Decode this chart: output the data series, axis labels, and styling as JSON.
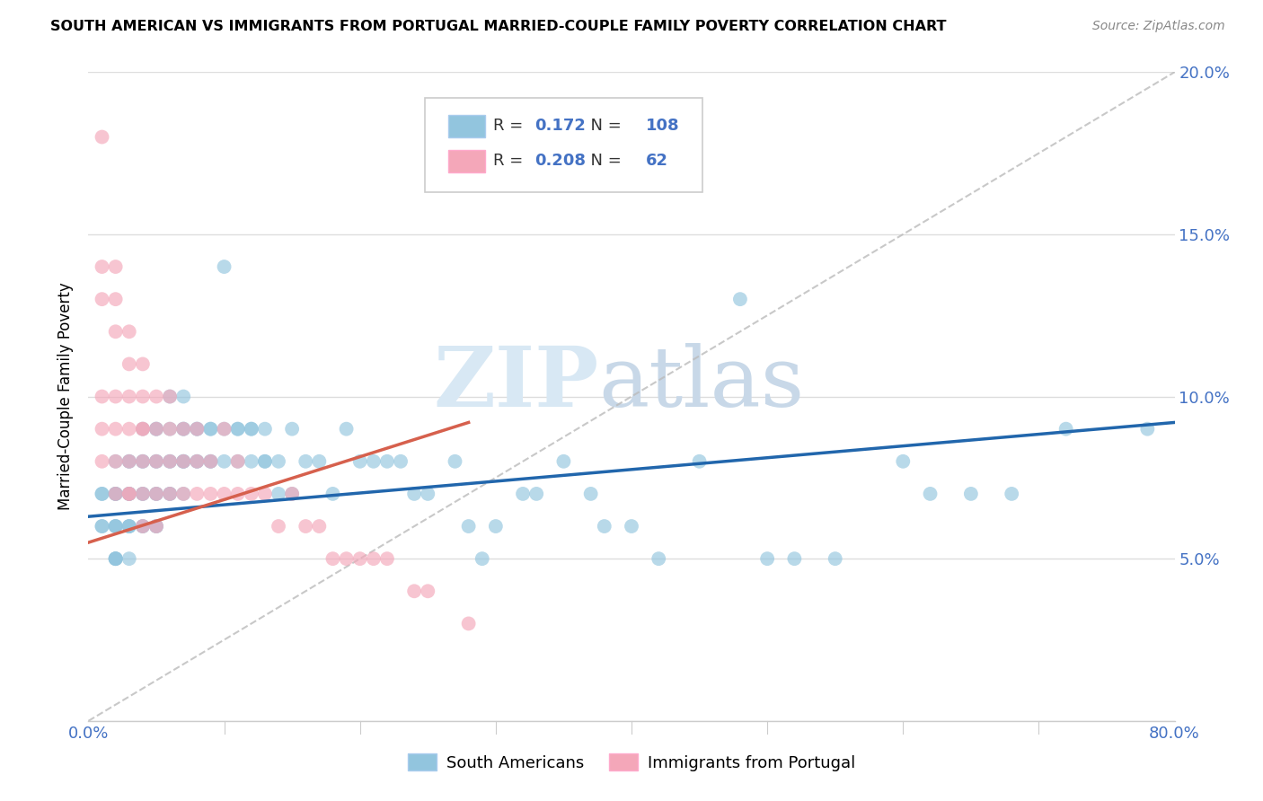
{
  "title": "SOUTH AMERICAN VS IMMIGRANTS FROM PORTUGAL MARRIED-COUPLE FAMILY POVERTY CORRELATION CHART",
  "source": "Source: ZipAtlas.com",
  "ylabel": "Married-Couple Family Poverty",
  "xlim": [
    0.0,
    0.8
  ],
  "ylim": [
    0.0,
    0.2
  ],
  "xticks": [
    0.0,
    0.1,
    0.2,
    0.3,
    0.4,
    0.5,
    0.6,
    0.7,
    0.8
  ],
  "yticks": [
    0.0,
    0.05,
    0.1,
    0.15,
    0.2
  ],
  "blue_R": 0.172,
  "blue_N": 108,
  "pink_R": 0.208,
  "pink_N": 62,
  "blue_color": "#92C5DE",
  "pink_color": "#F4A7B9",
  "blue_line_color": "#2166AC",
  "pink_line_color": "#D6604D",
  "watermark_zip": "ZIP",
  "watermark_atlas": "atlas",
  "legend_label_blue": "South Americans",
  "legend_label_pink": "Immigrants from Portugal",
  "blue_scatter_x": [
    0.01,
    0.01,
    0.01,
    0.01,
    0.02,
    0.02,
    0.02,
    0.02,
    0.02,
    0.02,
    0.02,
    0.02,
    0.02,
    0.02,
    0.02,
    0.03,
    0.03,
    0.03,
    0.03,
    0.03,
    0.03,
    0.03,
    0.03,
    0.03,
    0.04,
    0.04,
    0.04,
    0.04,
    0.04,
    0.04,
    0.04,
    0.05,
    0.05,
    0.05,
    0.05,
    0.05,
    0.05,
    0.05,
    0.05,
    0.06,
    0.06,
    0.06,
    0.06,
    0.06,
    0.06,
    0.07,
    0.07,
    0.07,
    0.07,
    0.07,
    0.07,
    0.07,
    0.08,
    0.08,
    0.08,
    0.08,
    0.09,
    0.09,
    0.09,
    0.09,
    0.1,
    0.1,
    0.1,
    0.11,
    0.11,
    0.11,
    0.12,
    0.12,
    0.12,
    0.13,
    0.13,
    0.13,
    0.14,
    0.14,
    0.15,
    0.15,
    0.16,
    0.17,
    0.18,
    0.19,
    0.2,
    0.21,
    0.22,
    0.23,
    0.24,
    0.25,
    0.27,
    0.28,
    0.29,
    0.3,
    0.32,
    0.33,
    0.35,
    0.37,
    0.38,
    0.4,
    0.42,
    0.45,
    0.48,
    0.5,
    0.52,
    0.55,
    0.6,
    0.62,
    0.65,
    0.68,
    0.72,
    0.78
  ],
  "blue_scatter_y": [
    0.07,
    0.07,
    0.06,
    0.06,
    0.08,
    0.07,
    0.07,
    0.07,
    0.06,
    0.06,
    0.06,
    0.05,
    0.05,
    0.05,
    0.05,
    0.08,
    0.08,
    0.07,
    0.07,
    0.07,
    0.06,
    0.06,
    0.06,
    0.05,
    0.09,
    0.08,
    0.08,
    0.07,
    0.07,
    0.06,
    0.06,
    0.09,
    0.09,
    0.08,
    0.08,
    0.07,
    0.07,
    0.06,
    0.06,
    0.1,
    0.09,
    0.08,
    0.08,
    0.07,
    0.07,
    0.1,
    0.09,
    0.09,
    0.08,
    0.08,
    0.08,
    0.07,
    0.09,
    0.09,
    0.08,
    0.08,
    0.09,
    0.09,
    0.08,
    0.08,
    0.14,
    0.09,
    0.08,
    0.09,
    0.09,
    0.08,
    0.09,
    0.09,
    0.08,
    0.09,
    0.08,
    0.08,
    0.08,
    0.07,
    0.09,
    0.07,
    0.08,
    0.08,
    0.07,
    0.09,
    0.08,
    0.08,
    0.08,
    0.08,
    0.07,
    0.07,
    0.08,
    0.06,
    0.05,
    0.06,
    0.07,
    0.07,
    0.08,
    0.07,
    0.06,
    0.06,
    0.05,
    0.08,
    0.13,
    0.05,
    0.05,
    0.05,
    0.08,
    0.07,
    0.07,
    0.07,
    0.09,
    0.09
  ],
  "pink_scatter_x": [
    0.01,
    0.01,
    0.01,
    0.01,
    0.01,
    0.01,
    0.02,
    0.02,
    0.02,
    0.02,
    0.02,
    0.02,
    0.02,
    0.03,
    0.03,
    0.03,
    0.03,
    0.03,
    0.03,
    0.03,
    0.04,
    0.04,
    0.04,
    0.04,
    0.04,
    0.04,
    0.04,
    0.05,
    0.05,
    0.05,
    0.05,
    0.05,
    0.06,
    0.06,
    0.06,
    0.06,
    0.07,
    0.07,
    0.07,
    0.08,
    0.08,
    0.08,
    0.09,
    0.09,
    0.1,
    0.1,
    0.11,
    0.11,
    0.12,
    0.13,
    0.14,
    0.15,
    0.16,
    0.17,
    0.18,
    0.19,
    0.2,
    0.21,
    0.22,
    0.24,
    0.25,
    0.28
  ],
  "pink_scatter_y": [
    0.18,
    0.14,
    0.13,
    0.1,
    0.09,
    0.08,
    0.14,
    0.13,
    0.12,
    0.1,
    0.09,
    0.08,
    0.07,
    0.12,
    0.11,
    0.1,
    0.09,
    0.08,
    0.07,
    0.07,
    0.11,
    0.1,
    0.09,
    0.09,
    0.08,
    0.07,
    0.06,
    0.1,
    0.09,
    0.08,
    0.07,
    0.06,
    0.1,
    0.09,
    0.08,
    0.07,
    0.09,
    0.08,
    0.07,
    0.09,
    0.08,
    0.07,
    0.08,
    0.07,
    0.09,
    0.07,
    0.08,
    0.07,
    0.07,
    0.07,
    0.06,
    0.07,
    0.06,
    0.06,
    0.05,
    0.05,
    0.05,
    0.05,
    0.05,
    0.04,
    0.04,
    0.03
  ],
  "blue_line_x": [
    0.0,
    0.8
  ],
  "blue_line_y": [
    0.063,
    0.092
  ],
  "pink_line_x": [
    0.0,
    0.28
  ],
  "pink_line_y": [
    0.055,
    0.092
  ]
}
